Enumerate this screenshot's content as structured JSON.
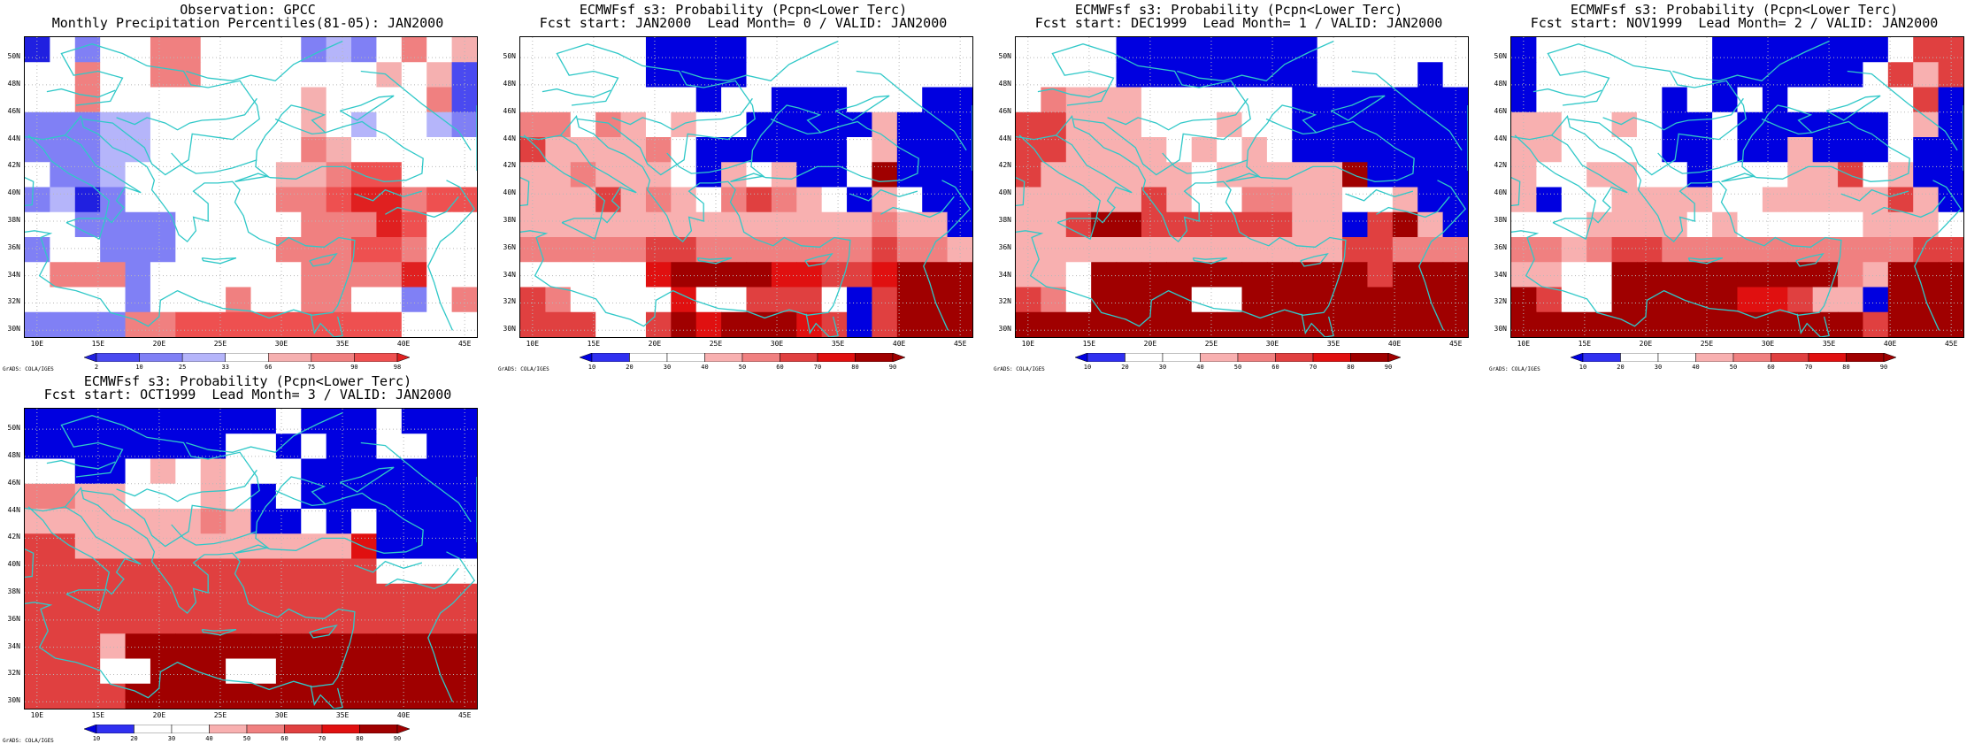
{
  "brand_credit": "GrADS: COLA/IGES",
  "map_axes": {
    "lon_labels": [
      "10E",
      "15E",
      "20E",
      "25E",
      "30E",
      "35E",
      "40E",
      "45E"
    ],
    "lat_labels": [
      "50N",
      "48N",
      "46N",
      "44N",
      "42N",
      "40N",
      "38N",
      "36N",
      "34N",
      "32N",
      "30N"
    ],
    "lon_range": [
      9,
      46
    ],
    "lat_range": [
      29.5,
      51.5
    ]
  },
  "colors": {
    "obs_scale": [
      "#2020e0",
      "#4a4af0",
      "#8080f5",
      "#b5b5fa",
      "#ffffff",
      "#f5b0b0",
      "#f08080",
      "#ee5050",
      "#e02020",
      "#cc0000",
      "#ee0000"
    ],
    "prob_scale": [
      "#0000e0",
      "#3030f0",
      "#ffffff",
      "#ffffff",
      "#f8b0b0",
      "#f08080",
      "#e04040",
      "#e01010",
      "#a00000"
    ],
    "coast": "#30c8c8"
  },
  "panels": [
    {
      "id": "obs",
      "title_line1": "Observation: GPCC",
      "title_line2": "Monthly Precipitation Percentiles(81-05): JAN2000",
      "colorbar_labels": [
        "2",
        "10",
        "25",
        "33",
        "66",
        "75",
        "90",
        "98"
      ],
      "scale": "obs",
      "grid": [
        [
          0,
          4,
          2,
          4,
          4,
          6,
          6,
          4,
          4,
          4,
          4,
          2,
          3,
          2,
          4,
          6,
          4,
          5
        ],
        [
          4,
          4,
          6,
          4,
          4,
          6,
          6,
          4,
          4,
          4,
          4,
          4,
          4,
          4,
          5,
          4,
          5,
          1
        ],
        [
          4,
          4,
          6,
          4,
          4,
          4,
          4,
          4,
          4,
          4,
          4,
          5,
          4,
          4,
          4,
          4,
          6,
          1
        ],
        [
          2,
          2,
          2,
          3,
          3,
          4,
          4,
          4,
          4,
          4,
          4,
          5,
          4,
          3,
          4,
          4,
          3,
          2
        ],
        [
          2,
          2,
          2,
          3,
          3,
          4,
          4,
          4,
          4,
          4,
          4,
          6,
          5,
          4,
          4,
          4,
          4,
          4
        ],
        [
          4,
          2,
          2,
          3,
          4,
          4,
          4,
          4,
          4,
          4,
          5,
          5,
          6,
          7,
          7,
          4,
          4,
          4
        ],
        [
          2,
          3,
          0,
          2,
          4,
          4,
          4,
          4,
          4,
          4,
          6,
          6,
          7,
          8,
          8,
          6,
          7,
          7
        ],
        [
          4,
          4,
          2,
          2,
          2,
          2,
          4,
          4,
          4,
          4,
          4,
          6,
          6,
          6,
          8,
          7,
          4,
          4
        ],
        [
          2,
          4,
          4,
          2,
          2,
          2,
          4,
          4,
          4,
          4,
          6,
          6,
          6,
          7,
          7,
          6,
          4,
          4
        ],
        [
          4,
          6,
          6,
          6,
          2,
          4,
          4,
          4,
          4,
          4,
          4,
          6,
          6,
          6,
          6,
          8,
          4,
          4
        ],
        [
          4,
          4,
          4,
          4,
          2,
          4,
          4,
          4,
          6,
          4,
          4,
          6,
          6,
          4,
          4,
          2,
          4,
          6
        ],
        [
          2,
          2,
          2,
          2,
          6,
          6,
          7,
          7,
          7,
          7,
          7,
          7,
          7,
          7,
          7,
          4,
          4,
          4
        ]
      ]
    },
    {
      "id": "lead0",
      "title_line1": "ECMWFsf s3: Probability (Pcpn<Lower Terc)",
      "title_line2": "Fcst start: JAN2000  Lead Month= 0 / VALID: JAN2000",
      "colorbar_labels": [
        "10",
        "20",
        "30",
        "40",
        "50",
        "60",
        "70",
        "80",
        "90"
      ],
      "scale": "prob",
      "grid": [
        [
          2,
          2,
          2,
          2,
          2,
          0,
          0,
          0,
          0,
          2,
          2,
          2,
          2,
          2,
          2,
          2,
          2,
          2
        ],
        [
          2,
          2,
          2,
          2,
          2,
          0,
          0,
          0,
          0,
          2,
          2,
          2,
          2,
          2,
          2,
          2,
          2,
          2
        ],
        [
          2,
          2,
          2,
          2,
          2,
          2,
          2,
          0,
          2,
          2,
          0,
          0,
          0,
          2,
          2,
          2,
          0,
          0
        ],
        [
          5,
          5,
          2,
          5,
          4,
          2,
          4,
          2,
          2,
          0,
          0,
          0,
          0,
          0,
          4,
          0,
          0,
          0
        ],
        [
          6,
          4,
          4,
          4,
          4,
          5,
          2,
          0,
          0,
          0,
          0,
          0,
          0,
          2,
          4,
          0,
          0,
          0
        ],
        [
          4,
          4,
          5,
          4,
          4,
          4,
          2,
          0,
          4,
          2,
          4,
          0,
          0,
          2,
          8,
          0,
          0,
          0
        ],
        [
          4,
          4,
          4,
          6,
          4,
          5,
          4,
          2,
          5,
          6,
          5,
          4,
          2,
          0,
          4,
          2,
          0,
          0
        ],
        [
          4,
          4,
          4,
          4,
          4,
          4,
          4,
          4,
          4,
          4,
          4,
          4,
          4,
          4,
          5,
          4,
          4,
          0
        ],
        [
          5,
          5,
          5,
          5,
          5,
          6,
          6,
          5,
          5,
          5,
          5,
          5,
          5,
          5,
          6,
          5,
          5,
          4
        ],
        [
          2,
          2,
          2,
          2,
          2,
          7,
          8,
          8,
          8,
          8,
          7,
          7,
          6,
          6,
          7,
          8,
          8,
          8
        ],
        [
          6,
          5,
          2,
          2,
          2,
          2,
          7,
          2,
          2,
          6,
          6,
          6,
          2,
          0,
          6,
          8,
          8,
          8
        ],
        [
          6,
          6,
          6,
          2,
          2,
          6,
          8,
          7,
          8,
          8,
          8,
          7,
          6,
          0,
          6,
          8,
          8,
          8
        ]
      ]
    },
    {
      "id": "lead1",
      "title_line1": "ECMWFsf s3: Probability (Pcpn<Lower Terc)",
      "title_line2": "Fcst start: DEC1999  Lead Month= 1 / VALID: JAN2000",
      "colorbar_labels": [
        "10",
        "20",
        "30",
        "40",
        "50",
        "60",
        "70",
        "80",
        "90"
      ],
      "scale": "prob",
      "grid": [
        [
          2,
          2,
          2,
          2,
          0,
          0,
          0,
          0,
          0,
          0,
          0,
          0,
          2,
          2,
          2,
          2,
          2,
          2
        ],
        [
          2,
          2,
          2,
          2,
          0,
          0,
          0,
          0,
          0,
          0,
          0,
          0,
          2,
          2,
          2,
          2,
          0,
          2
        ],
        [
          2,
          5,
          4,
          4,
          4,
          2,
          2,
          2,
          2,
          2,
          2,
          0,
          0,
          0,
          0,
          0,
          0,
          0
        ],
        [
          6,
          6,
          4,
          4,
          4,
          2,
          2,
          2,
          4,
          2,
          2,
          0,
          0,
          0,
          0,
          0,
          0,
          0
        ],
        [
          6,
          6,
          4,
          4,
          4,
          4,
          2,
          4,
          2,
          4,
          2,
          0,
          0,
          0,
          0,
          0,
          0,
          0
        ],
        [
          6,
          4,
          4,
          4,
          4,
          4,
          4,
          2,
          4,
          4,
          4,
          4,
          4,
          8,
          0,
          0,
          0,
          0
        ],
        [
          4,
          4,
          4,
          4,
          4,
          6,
          4,
          2,
          2,
          5,
          5,
          4,
          4,
          2,
          2,
          4,
          0,
          0
        ],
        [
          4,
          4,
          6,
          8,
          8,
          6,
          6,
          6,
          6,
          6,
          6,
          4,
          4,
          0,
          6,
          8,
          4,
          0
        ],
        [
          4,
          4,
          4,
          4,
          4,
          4,
          4,
          4,
          4,
          4,
          4,
          4,
          4,
          6,
          6,
          5,
          5,
          5
        ],
        [
          4,
          4,
          2,
          8,
          8,
          8,
          8,
          8,
          8,
          8,
          8,
          8,
          8,
          8,
          6,
          8,
          8,
          8
        ],
        [
          6,
          5,
          2,
          8,
          8,
          8,
          8,
          2,
          2,
          8,
          8,
          8,
          8,
          8,
          8,
          8,
          8,
          8
        ],
        [
          8,
          8,
          8,
          8,
          8,
          8,
          8,
          8,
          8,
          8,
          8,
          8,
          8,
          8,
          8,
          8,
          8,
          8
        ]
      ]
    },
    {
      "id": "lead2",
      "title_line1": "ECMWFsf s3: Probability (Pcpn<Lower Terc)",
      "title_line2": "Fcst start: NOV1999  Lead Month= 2 / VALID: JAN2000",
      "colorbar_labels": [
        "10",
        "20",
        "30",
        "40",
        "50",
        "60",
        "70",
        "80",
        "90"
      ],
      "scale": "prob",
      "grid": [
        [
          0,
          2,
          2,
          2,
          2,
          2,
          2,
          2,
          0,
          0,
          0,
          0,
          0,
          0,
          0,
          2,
          6,
          6
        ],
        [
          0,
          2,
          2,
          2,
          2,
          2,
          2,
          2,
          0,
          0,
          0,
          0,
          0,
          0,
          2,
          6,
          4,
          6
        ],
        [
          0,
          2,
          2,
          2,
          2,
          2,
          0,
          2,
          0,
          2,
          0,
          2,
          2,
          2,
          2,
          2,
          6,
          0
        ],
        [
          4,
          4,
          2,
          2,
          4,
          2,
          0,
          0,
          2,
          0,
          0,
          0,
          0,
          0,
          0,
          2,
          4,
          0
        ],
        [
          4,
          4,
          2,
          2,
          2,
          2,
          0,
          0,
          2,
          0,
          0,
          4,
          0,
          0,
          0,
          2,
          0,
          0
        ],
        [
          4,
          2,
          2,
          4,
          4,
          2,
          2,
          0,
          2,
          2,
          2,
          4,
          4,
          6,
          2,
          4,
          0,
          0
        ],
        [
          4,
          0,
          2,
          2,
          4,
          4,
          4,
          4,
          2,
          2,
          4,
          4,
          4,
          4,
          4,
          6,
          4,
          0
        ],
        [
          2,
          2,
          2,
          4,
          4,
          4,
          4,
          2,
          4,
          2,
          2,
          2,
          2,
          2,
          4,
          4,
          4,
          2
        ],
        [
          5,
          5,
          4,
          5,
          6,
          6,
          5,
          5,
          5,
          5,
          5,
          5,
          5,
          5,
          5,
          5,
          6,
          6
        ],
        [
          4,
          4,
          2,
          2,
          8,
          8,
          8,
          8,
          8,
          8,
          8,
          8,
          8,
          5,
          4,
          8,
          8,
          8
        ],
        [
          8,
          6,
          2,
          2,
          8,
          8,
          8,
          8,
          8,
          7,
          7,
          6,
          4,
          4,
          0,
          8,
          8,
          8
        ],
        [
          8,
          8,
          8,
          8,
          8,
          8,
          8,
          8,
          8,
          8,
          8,
          8,
          8,
          8,
          6,
          8,
          8,
          8
        ]
      ]
    },
    {
      "id": "lead3",
      "title_line1": "ECMWFsf s3: Probability (Pcpn<Lower Terc)",
      "title_line2": "Fcst start: OCT1999  Lead Month= 3 / VALID: JAN2000",
      "colorbar_labels": [
        "10",
        "20",
        "30",
        "40",
        "50",
        "60",
        "70",
        "80",
        "90"
      ],
      "scale": "prob",
      "grid": [
        [
          0,
          0,
          0,
          0,
          0,
          0,
          0,
          0,
          0,
          0,
          2,
          0,
          0,
          0,
          2,
          0,
          0,
          0
        ],
        [
          0,
          0,
          0,
          0,
          0,
          0,
          0,
          0,
          2,
          2,
          0,
          2,
          0,
          0,
          2,
          2,
          0,
          0
        ],
        [
          2,
          2,
          0,
          0,
          2,
          4,
          2,
          4,
          2,
          2,
          2,
          0,
          0,
          0,
          0,
          0,
          0,
          0
        ],
        [
          5,
          5,
          4,
          4,
          2,
          2,
          2,
          4,
          2,
          0,
          2,
          0,
          0,
          0,
          0,
          0,
          0,
          0
        ],
        [
          4,
          4,
          4,
          4,
          4,
          4,
          4,
          5,
          4,
          0,
          0,
          2,
          0,
          2,
          0,
          0,
          0,
          0
        ],
        [
          6,
          6,
          4,
          4,
          4,
          4,
          4,
          4,
          4,
          4,
          4,
          4,
          4,
          7,
          0,
          0,
          0,
          0
        ],
        [
          6,
          6,
          6,
          6,
          6,
          6,
          6,
          6,
          6,
          6,
          6,
          6,
          6,
          6,
          2,
          2,
          2,
          2
        ],
        [
          6,
          6,
          6,
          6,
          6,
          6,
          6,
          6,
          6,
          6,
          6,
          6,
          6,
          6,
          6,
          6,
          6,
          6
        ],
        [
          6,
          6,
          6,
          6,
          6,
          6,
          6,
          6,
          6,
          6,
          6,
          6,
          6,
          6,
          6,
          6,
          6,
          6
        ],
        [
          6,
          6,
          6,
          4,
          8,
          8,
          8,
          8,
          8,
          8,
          8,
          8,
          8,
          8,
          8,
          8,
          8,
          8
        ],
        [
          6,
          6,
          6,
          2,
          2,
          8,
          8,
          8,
          2,
          2,
          8,
          8,
          8,
          8,
          8,
          8,
          8,
          8
        ],
        [
          6,
          6,
          6,
          6,
          8,
          8,
          8,
          8,
          8,
          8,
          8,
          8,
          8,
          8,
          8,
          8,
          8,
          8
        ]
      ]
    }
  ]
}
